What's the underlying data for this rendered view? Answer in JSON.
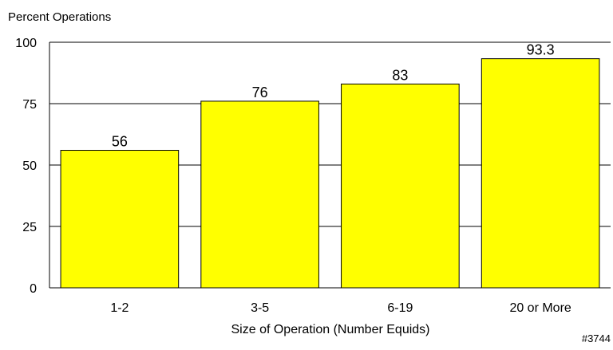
{
  "chart_data": {
    "type": "bar",
    "ylabel": "Percent Operations",
    "xlabel": "Size of Operation (Number Equids)",
    "categories": [
      "1-2",
      "3-5",
      "6-19",
      "20 or More"
    ],
    "values": [
      56,
      76,
      83,
      93.3
    ],
    "value_labels": [
      "56",
      "76",
      "83",
      "93.3"
    ],
    "ylim": [
      0,
      100
    ],
    "yticks": [
      0,
      25,
      50,
      75,
      100
    ],
    "grid": "horizontal",
    "bar_color": "#ffff00",
    "edge_color": "#000000"
  },
  "footnote": "#3744"
}
